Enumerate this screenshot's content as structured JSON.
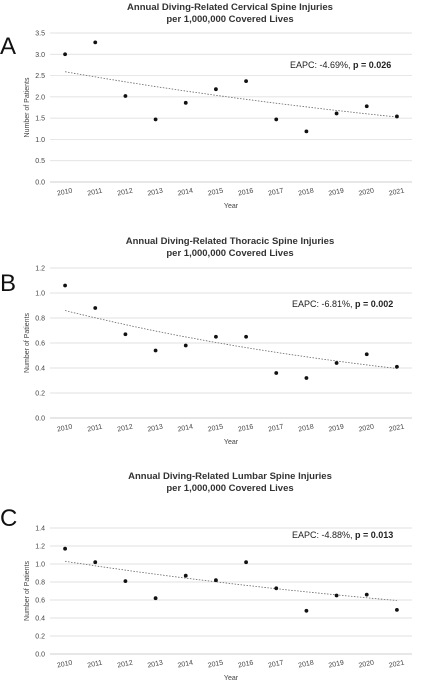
{
  "colors": {
    "point": "#111111",
    "trend": "#666666",
    "grid": "#d9d9d9",
    "axis": "#bfbfbf"
  },
  "chart_data": [
    {
      "type": "scatter",
      "panel": "A",
      "title_line1": "Annual Diving-Related Cervical Spine Injuries",
      "title_line2": "per 1,000,000 Covered Lives",
      "xlabel": "Year",
      "ylabel": "Number of Patients",
      "x": [
        "2010",
        "2011",
        "2012",
        "2013",
        "2014",
        "2015",
        "2016",
        "2017",
        "2018",
        "2019",
        "2020",
        "2021"
      ],
      "y": [
        3.0,
        3.28,
        2.02,
        1.47,
        1.86,
        2.18,
        2.37,
        1.47,
        1.19,
        1.61,
        1.78,
        1.54
      ],
      "trend": {
        "start": 2.59,
        "rate": -0.0469
      },
      "ylim": [
        0,
        3.5
      ],
      "yticks": [
        "0.0",
        "0.5",
        "1.0",
        "1.5",
        "2.0",
        "2.5",
        "3.0",
        "3.5"
      ],
      "annotation_text": "EAPC: -4.69%, ",
      "annotation_bold": "p = 0.026",
      "grid": true
    },
    {
      "type": "scatter",
      "panel": "B",
      "title_line1": "Annual Diving-Related Thoracic Spine Injuries",
      "title_line2": "per 1,000,000 Covered Lives",
      "xlabel": "Year",
      "ylabel": "Number of Patients",
      "x": [
        "2010",
        "2011",
        "2012",
        "2013",
        "2014",
        "2015",
        "2016",
        "2017",
        "2018",
        "2019",
        "2020",
        "2021"
      ],
      "y": [
        1.06,
        0.88,
        0.67,
        0.54,
        0.58,
        0.65,
        0.65,
        0.36,
        0.32,
        0.44,
        0.51,
        0.41
      ],
      "trend": {
        "start": 0.86,
        "rate": -0.0681
      },
      "ylim": [
        0,
        1.2
      ],
      "yticks": [
        "0.0",
        "0.2",
        "0.4",
        "0.6",
        "0.8",
        "1.0",
        "1.2"
      ],
      "annotation_text": "EAPC: -6.81%, ",
      "annotation_bold": "p = 0.002",
      "grid": true
    },
    {
      "type": "scatter",
      "panel": "C",
      "title_line1": "Annual Diving-Related Lumbar Spine Injuries",
      "title_line2": "per 1,000,000 Covered Lives",
      "xlabel": "Year",
      "ylabel": "Number of Patients",
      "x": [
        "2010",
        "2011",
        "2012",
        "2013",
        "2014",
        "2015",
        "2016",
        "2017",
        "2018",
        "2019",
        "2020",
        "2021"
      ],
      "y": [
        1.17,
        1.02,
        0.81,
        0.62,
        0.87,
        0.82,
        1.02,
        0.73,
        0.48,
        0.65,
        0.66,
        0.49
      ],
      "trend": {
        "start": 1.03,
        "rate": -0.0488
      },
      "ylim": [
        0,
        1.4
      ],
      "yticks": [
        "0.0",
        "0.2",
        "0.4",
        "0.6",
        "0.8",
        "1.0",
        "1.2",
        "1.4"
      ],
      "annotation_text": "EAPC: -4.88%, ",
      "annotation_bold": "p = 0.013",
      "grid": true
    }
  ]
}
